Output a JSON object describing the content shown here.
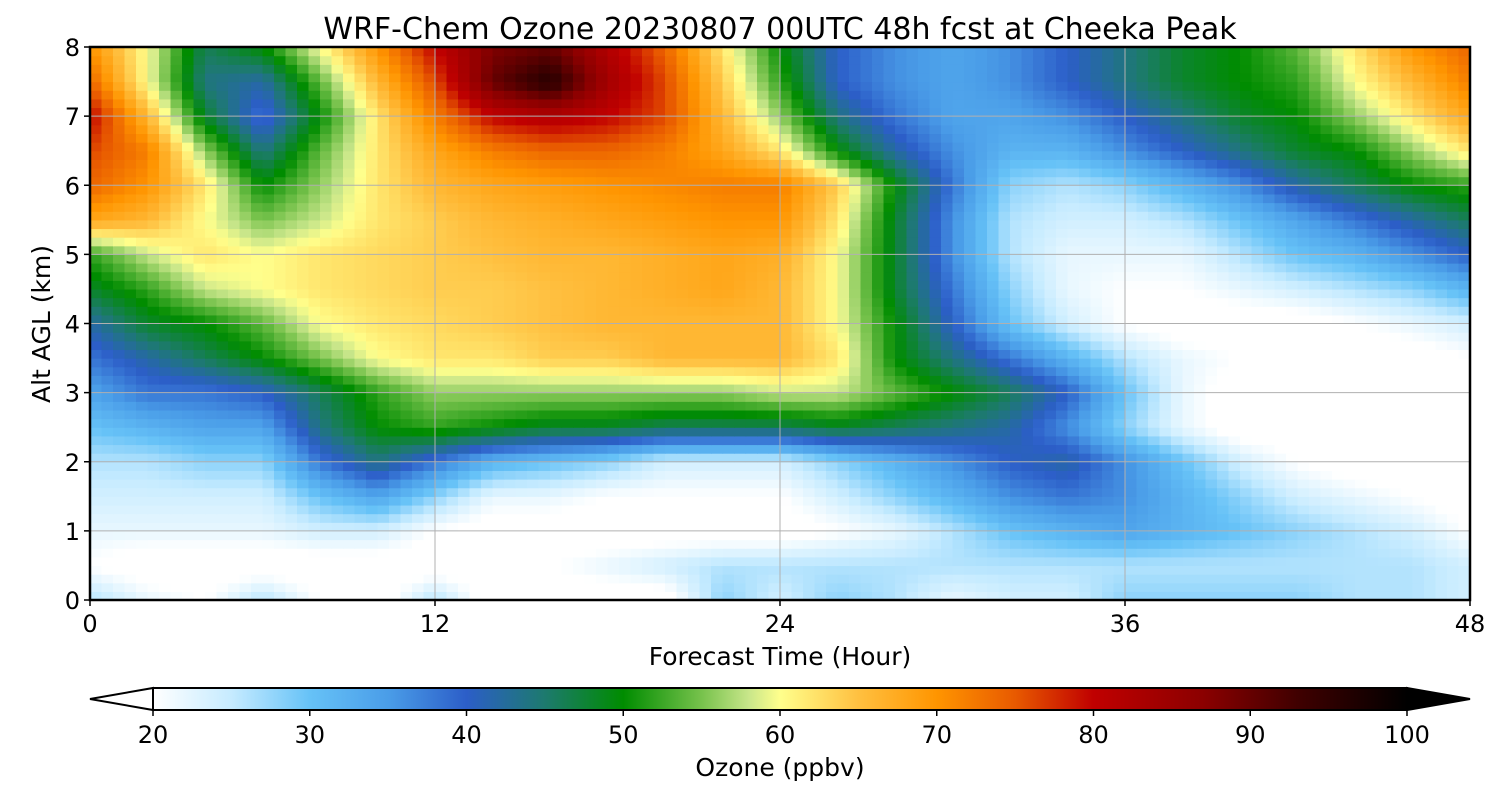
{
  "chart_data": {
    "type": "heatmap",
    "title": "WRF-Chem Ozone  20230807 00UTC 48h fcst at Cheeka Peak",
    "xlabel": "Forecast Time (Hour)",
    "ylabel": "Alt AGL (km)",
    "x_ticks": [
      "0",
      "12",
      "24",
      "36",
      "48"
    ],
    "y_ticks": [
      "0",
      "1",
      "2",
      "3",
      "4",
      "5",
      "6",
      "7",
      "8"
    ],
    "xlim": [
      0,
      48
    ],
    "ylim": [
      0,
      8
    ],
    "grid": true,
    "colorbar": {
      "label": "Ozone  (ppbv)",
      "ticks": [
        "20",
        "30",
        "40",
        "50",
        "60",
        "70",
        "80",
        "90",
        "100"
      ],
      "range": [
        20,
        100
      ],
      "extend": "both",
      "stops": [
        {
          "v": 20,
          "c": "#ffffff"
        },
        {
          "v": 25,
          "c": "#c6ebff"
        },
        {
          "v": 30,
          "c": "#66c2f7"
        },
        {
          "v": 35,
          "c": "#4a9de8"
        },
        {
          "v": 40,
          "c": "#2c5ec8"
        },
        {
          "v": 45,
          "c": "#1d7a6e"
        },
        {
          "v": 50,
          "c": "#008c00"
        },
        {
          "v": 55,
          "c": "#77c24c"
        },
        {
          "v": 58,
          "c": "#c8e68a"
        },
        {
          "v": 60,
          "c": "#ffff8c"
        },
        {
          "v": 65,
          "c": "#ffc040"
        },
        {
          "v": 70,
          "c": "#ff9500"
        },
        {
          "v": 75,
          "c": "#e85a00"
        },
        {
          "v": 80,
          "c": "#c00000"
        },
        {
          "v": 87,
          "c": "#8b0000"
        },
        {
          "v": 93,
          "c": "#400000"
        },
        {
          "v": 100,
          "c": "#000000"
        }
      ]
    },
    "hours": [
      0,
      2,
      4,
      6,
      8,
      10,
      12,
      14,
      16,
      18,
      20,
      22,
      24,
      26,
      28,
      30,
      32,
      34,
      36,
      38,
      40,
      42,
      44,
      46,
      48
    ],
    "altitudes_km": [
      0,
      0.5,
      1,
      1.5,
      2,
      2.5,
      3,
      3.5,
      4,
      4.5,
      5,
      5.5,
      6,
      6.5,
      7,
      7.5,
      8
    ],
    "ozone_ppbv": [
      [
        26,
        22,
        20,
        26,
        20,
        18,
        26,
        18,
        18,
        18,
        18,
        28,
        24,
        28,
        26,
        22,
        24,
        24,
        28,
        28,
        28,
        28,
        26,
        26,
        24
      ],
      [
        20,
        18,
        18,
        18,
        18,
        18,
        18,
        18,
        20,
        22,
        24,
        26,
        26,
        26,
        26,
        26,
        26,
        26,
        26,
        26,
        26,
        26,
        26,
        26,
        24
      ],
      [
        22,
        22,
        22,
        22,
        24,
        24,
        20,
        18,
        18,
        18,
        18,
        18,
        18,
        20,
        22,
        26,
        30,
        32,
        34,
        32,
        30,
        28,
        26,
        24,
        20
      ],
      [
        24,
        24,
        24,
        24,
        30,
        34,
        28,
        22,
        22,
        20,
        20,
        20,
        20,
        24,
        28,
        32,
        36,
        38,
        36,
        32,
        28,
        24,
        22,
        20,
        18
      ],
      [
        26,
        26,
        28,
        28,
        38,
        44,
        38,
        32,
        30,
        28,
        24,
        24,
        24,
        28,
        32,
        36,
        40,
        42,
        36,
        30,
        24,
        20,
        18,
        18,
        18
      ],
      [
        30,
        32,
        34,
        34,
        44,
        50,
        52,
        50,
        48,
        48,
        46,
        46,
        46,
        48,
        46,
        44,
        42,
        36,
        28,
        22,
        18,
        18,
        18,
        18,
        18
      ],
      [
        34,
        38,
        38,
        40,
        46,
        52,
        56,
        56,
        56,
        56,
        56,
        56,
        58,
        58,
        54,
        50,
        46,
        40,
        30,
        22,
        18,
        18,
        18,
        18,
        18
      ],
      [
        38,
        42,
        46,
        50,
        55,
        60,
        62,
        62,
        64,
        64,
        66,
        66,
        66,
        62,
        50,
        44,
        38,
        32,
        26,
        22,
        20,
        18,
        18,
        18,
        20
      ],
      [
        42,
        48,
        50,
        54,
        60,
        62,
        63,
        64,
        65,
        66,
        66,
        66,
        66,
        60,
        50,
        40,
        30,
        24,
        20,
        18,
        18,
        18,
        20,
        22,
        24
      ],
      [
        48,
        52,
        58,
        60,
        62,
        63,
        64,
        64,
        65,
        66,
        67,
        68,
        66,
        60,
        48,
        38,
        28,
        22,
        20,
        20,
        22,
        24,
        26,
        28,
        32
      ],
      [
        52,
        58,
        62,
        60,
        62,
        63,
        64,
        65,
        66,
        66,
        67,
        68,
        67,
        60,
        48,
        36,
        26,
        22,
        22,
        22,
        26,
        30,
        32,
        36,
        40
      ],
      [
        68,
        66,
        60,
        55,
        58,
        62,
        64,
        66,
        67,
        68,
        69,
        70,
        70,
        62,
        48,
        36,
        26,
        24,
        24,
        26,
        30,
        34,
        38,
        42,
        46
      ],
      [
        74,
        70,
        62,
        50,
        56,
        62,
        66,
        68,
        69,
        70,
        71,
        72,
        72,
        64,
        50,
        38,
        28,
        26,
        28,
        32,
        36,
        42,
        46,
        50,
        52
      ],
      [
        76,
        72,
        56,
        44,
        54,
        62,
        68,
        72,
        74,
        74,
        72,
        68,
        62,
        50,
        42,
        36,
        32,
        32,
        36,
        40,
        44,
        48,
        50,
        56,
        62
      ],
      [
        80,
        66,
        48,
        38,
        50,
        62,
        72,
        80,
        82,
        80,
        76,
        66,
        56,
        44,
        38,
        34,
        34,
        36,
        40,
        44,
        48,
        50,
        56,
        62,
        68
      ],
      [
        74,
        60,
        44,
        42,
        54,
        66,
        76,
        90,
        96,
        84,
        76,
        64,
        52,
        40,
        36,
        34,
        36,
        40,
        44,
        48,
        50,
        52,
        60,
        66,
        72
      ],
      [
        70,
        60,
        46,
        50,
        60,
        70,
        80,
        88,
        90,
        82,
        74,
        62,
        50,
        40,
        36,
        34,
        36,
        40,
        44,
        48,
        50,
        54,
        62,
        70,
        74
      ]
    ]
  }
}
